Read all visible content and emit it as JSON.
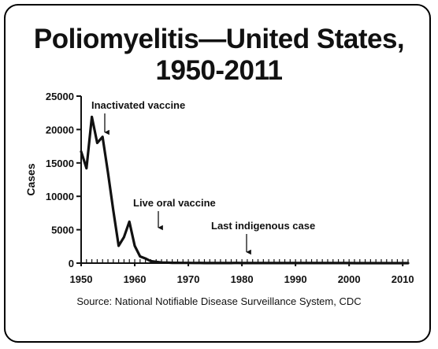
{
  "title_line1": "Poliomyelitis—United States,",
  "title_line2": "1950-2011",
  "source": "Source: National Notifiable Disease Surveillance System, CDC",
  "chart_data": {
    "type": "line",
    "xlabel": "",
    "ylabel": "Cases",
    "xlim": [
      1950,
      2011
    ],
    "ylim": [
      0,
      25000
    ],
    "x_ticks": [
      1950,
      1960,
      1970,
      1980,
      1990,
      2000,
      2010
    ],
    "y_ticks": [
      0,
      5000,
      10000,
      15000,
      20000,
      25000
    ],
    "grid": false,
    "legend": "none",
    "line_color": "#111111",
    "series": [
      {
        "x": [
          1950,
          1951,
          1952,
          1953,
          1954,
          1955,
          1956,
          1957,
          1958,
          1959,
          1960,
          1961,
          1962,
          1963,
          1964,
          1965,
          1966,
          1967,
          1968,
          1969,
          1970,
          1971,
          1972,
          1973,
          1974,
          1975,
          1976,
          1977,
          1978,
          1979,
          1980,
          1981,
          1982,
          1983,
          1984,
          1985,
          1986,
          1987,
          1988,
          1989,
          1990,
          1991,
          1992,
          1993,
          1994,
          1995,
          1996,
          1997,
          1998,
          1999,
          2000,
          2001,
          2002,
          2003,
          2004,
          2005,
          2006,
          2007,
          2008,
          2009,
          2010,
          2011
        ],
        "values": [
          16700,
          14200,
          21900,
          18000,
          18900,
          13600,
          7900,
          2600,
          3900,
          6200,
          2600,
          1000,
          700,
          300,
          200,
          100,
          80,
          50,
          50,
          30,
          30,
          20,
          30,
          10,
          10,
          10,
          10,
          10,
          10,
          30,
          10,
          10,
          10,
          10,
          10,
          10,
          10,
          10,
          10,
          10,
          10,
          10,
          10,
          10,
          10,
          10,
          10,
          10,
          10,
          10,
          10,
          0,
          0,
          0,
          0,
          0,
          0,
          0,
          0,
          0,
          0,
          0
        ]
      }
    ],
    "annotations": [
      {
        "text": "Inactivated vaccine",
        "x": 1955,
        "y": 19500
      },
      {
        "text": "Live oral vaccine",
        "x": 1964,
        "y": 5000
      },
      {
        "text": "Last indigenous case",
        "x": 1980,
        "y": 1200
      }
    ]
  }
}
